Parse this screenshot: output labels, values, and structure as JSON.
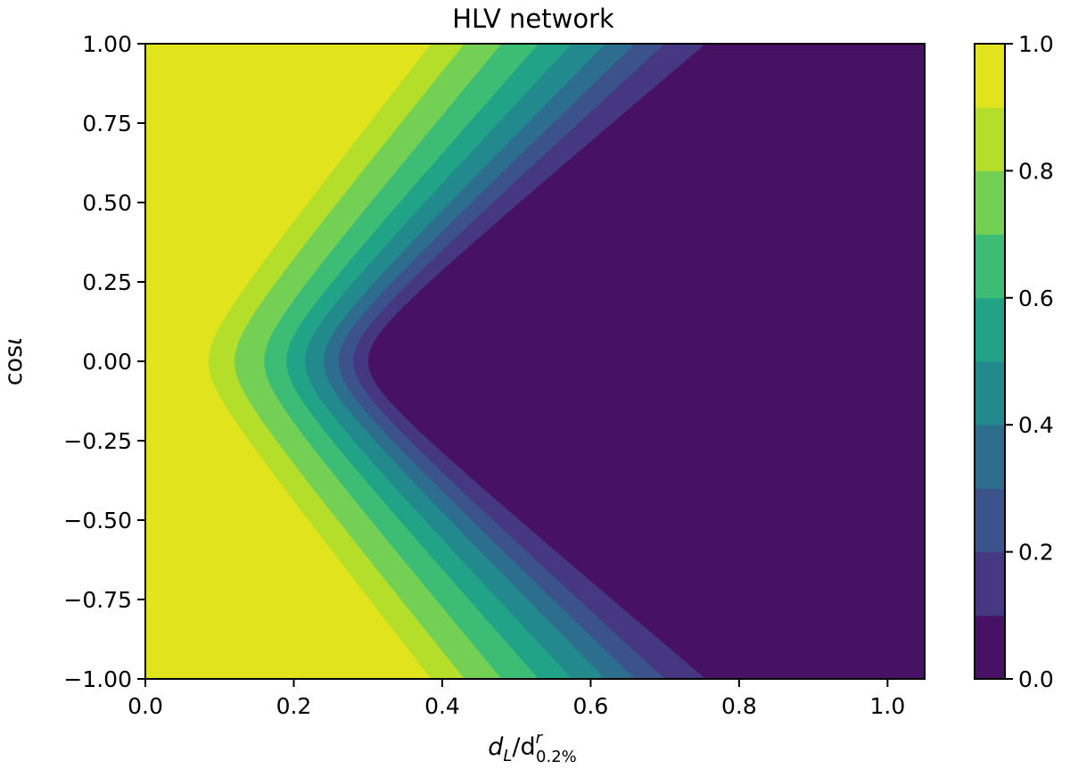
{
  "chart_data": {
    "type": "contour",
    "title": "HLV network",
    "xlabel": "d_L/d^r_0.2%",
    "ylabel": "cosι",
    "xlim": [
      0.0,
      1.05
    ],
    "ylim": [
      -1.0,
      1.0
    ],
    "xticks": [
      {
        "value": 0.0,
        "label": "0.0"
      },
      {
        "value": 0.2,
        "label": "0.2"
      },
      {
        "value": 0.4,
        "label": "0.4"
      },
      {
        "value": 0.6,
        "label": "0.6"
      },
      {
        "value": 0.8,
        "label": "0.8"
      },
      {
        "value": 1.0,
        "label": "1.0"
      }
    ],
    "yticks": [
      {
        "value": 1.0,
        "label": "1.00"
      },
      {
        "value": 0.75,
        "label": "0.75"
      },
      {
        "value": 0.5,
        "label": "0.50"
      },
      {
        "value": 0.25,
        "label": "0.25"
      },
      {
        "value": 0.0,
        "label": "0.00"
      },
      {
        "value": -0.25,
        "label": "−0.25"
      },
      {
        "value": -0.5,
        "label": "−0.50"
      },
      {
        "value": -0.75,
        "label": "−0.75"
      },
      {
        "value": -1.0,
        "label": "−1.00"
      }
    ],
    "colorbar": {
      "range": [
        0.0,
        1.0
      ],
      "levels": [
        0.0,
        0.1,
        0.2,
        0.3,
        0.4,
        0.5,
        0.6,
        0.7,
        0.8,
        0.9,
        1.0
      ],
      "ticks": [
        {
          "value": 0.0,
          "label": "0.0"
        },
        {
          "value": 0.2,
          "label": "0.2"
        },
        {
          "value": 0.4,
          "label": "0.4"
        },
        {
          "value": 0.6,
          "label": "0.6"
        },
        {
          "value": 0.8,
          "label": "0.8"
        },
        {
          "value": 1.0,
          "label": "1.0"
        }
      ],
      "colormap": "viridis",
      "band_colors": [
        "#471164",
        "#453781",
        "#3b528b",
        "#2d6e8e",
        "#22898d",
        "#20a386",
        "#3cbc74",
        "#74d055",
        "#b5de2b",
        "#e1e31c"
      ]
    },
    "contour_boundaries": [
      {
        "level": 0.9,
        "x_at_cos_0": 0.085,
        "x_at_cos_pm1": 0.385
      },
      {
        "level": 0.8,
        "x_at_cos_0": 0.12,
        "x_at_cos_pm1": 0.43
      },
      {
        "level": 0.7,
        "x_at_cos_0": 0.16,
        "x_at_cos_pm1": 0.48
      },
      {
        "level": 0.6,
        "x_at_cos_0": 0.19,
        "x_at_cos_pm1": 0.53
      },
      {
        "level": 0.5,
        "x_at_cos_0": 0.215,
        "x_at_cos_pm1": 0.575
      },
      {
        "level": 0.4,
        "x_at_cos_0": 0.24,
        "x_at_cos_pm1": 0.62
      },
      {
        "level": 0.3,
        "x_at_cos_0": 0.26,
        "x_at_cos_pm1": 0.66
      },
      {
        "level": 0.2,
        "x_at_cos_0": 0.28,
        "x_at_cos_pm1": 0.7
      },
      {
        "level": 0.1,
        "x_at_cos_0": 0.3,
        "x_at_cos_pm1": 0.755
      }
    ]
  }
}
